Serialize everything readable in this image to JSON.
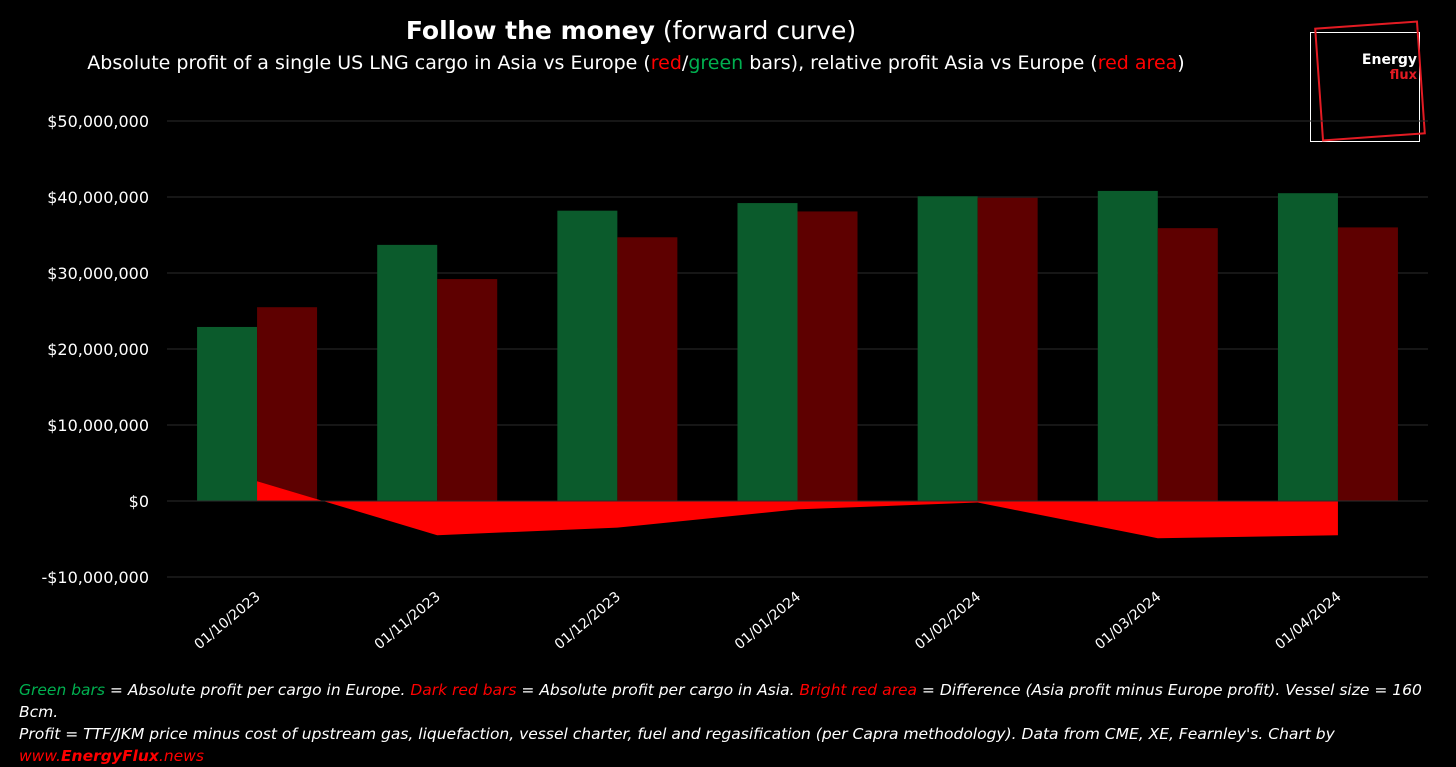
{
  "title": {
    "bold": "Follow the money",
    "rest": " (forward curve)"
  },
  "subtitle": {
    "part1": "Absolute profit of a single US LNG cargo in Asia vs Europe (",
    "red": "red",
    "slash": "/",
    "green": "green",
    "part2": " bars), relative profit Asia vs Europe (",
    "red_area": "red area",
    "close": ")"
  },
  "logo": {
    "line1": "Energy",
    "line2": "flux"
  },
  "colors": {
    "europe_bar": "#0b5b2c",
    "asia_bar": "#5e0000",
    "difference_area": "#ff0000",
    "gridline": "#2b2b2b",
    "accent_green": "#00b050",
    "accent_red": "#ff0000"
  },
  "chart_data": {
    "type": "bar",
    "categories": [
      "01/10/2023",
      "01/11/2023",
      "01/12/2023",
      "01/01/2024",
      "01/02/2024",
      "01/03/2024",
      "01/04/2024"
    ],
    "series": [
      {
        "kind": "bar",
        "values": [
          22900000,
          33700000,
          38200000,
          39200000,
          40100000,
          40800000,
          40500000
        ]
      },
      {
        "kind": "bar",
        "values": [
          25500000,
          29200000,
          34700000,
          38100000,
          39900000,
          35900000,
          36000000
        ]
      },
      {
        "kind": "area",
        "values": [
          2600000,
          -4500000,
          -3500000,
          -1100000,
          -200000,
          -4900000,
          -4500000
        ]
      }
    ],
    "ylim": [
      -10000000,
      50000000
    ],
    "yticks": [
      50000000,
      40000000,
      30000000,
      20000000,
      10000000,
      0,
      -10000000
    ],
    "ytick_labels": [
      "$50,000,000",
      "$40,000,000",
      "$30,000,000",
      "$20,000,000",
      "$10,000,000",
      "$0",
      "-$10,000,000"
    ],
    "grid": true,
    "legend": "none"
  },
  "footer": {
    "l1_green": "Green bars",
    "l1_a": " = Absolute profit per cargo in Europe. ",
    "l1_darkred": "Dark red bars",
    "l1_b": " = Absolute profit per cargo in Asia. ",
    "l1_brightred": "Bright red area",
    "l1_c": " = Difference (Asia profit minus Europe profit). Vessel size = 160 Bcm.",
    "l2": "Profit = TTF/JKM price minus cost of upstream gas, liquefaction, vessel charter, fuel and regasification (per Capra methodology). Data from CME, XE, Fearnley's. Chart by",
    "l3_www": "www.",
    "l3_brand": "EnergyFlux",
    "l3_tld": ".news"
  }
}
